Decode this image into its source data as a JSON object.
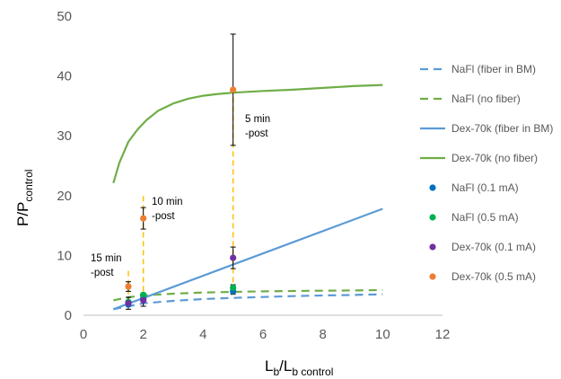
{
  "chart_data": {
    "type": "line",
    "xlim": [
      0,
      12
    ],
    "ylim": [
      0,
      50
    ],
    "x_ticks": [
      0,
      2,
      4,
      6,
      8,
      10,
      12
    ],
    "y_ticks": [
      0,
      10,
      20,
      30,
      40,
      50
    ],
    "xlabel": {
      "main": "L",
      "sub1": "b",
      "mid": "/L",
      "sub2": "b control"
    },
    "ylabel": {
      "main": "P/P",
      "sub": "control"
    },
    "grid": false,
    "legend_position": "right",
    "series": [
      {
        "name": "NaFl (fiber in BM)",
        "style": "dashed",
        "color": "#5b9bd5",
        "x": [
          1,
          1.5,
          2,
          3,
          4,
          5,
          6,
          7,
          8,
          9,
          10
        ],
        "y": [
          1.0,
          1.5,
          2.0,
          2.4,
          2.7,
          2.9,
          3.05,
          3.2,
          3.3,
          3.4,
          3.5
        ]
      },
      {
        "name": "NaFl (no fiber)",
        "style": "dashed",
        "color": "#70ad47",
        "x": [
          1,
          1.5,
          2,
          3,
          4,
          5,
          6,
          7,
          8,
          9,
          10
        ],
        "y": [
          2.5,
          3.0,
          3.3,
          3.6,
          3.8,
          3.9,
          4.0,
          4.05,
          4.1,
          4.15,
          4.2
        ]
      },
      {
        "name": "Dex-70k (fiber in BM)",
        "style": "solid",
        "color": "#5b9bd5",
        "x": [
          1,
          10
        ],
        "y": [
          1.0,
          17.8
        ]
      },
      {
        "name": "Dex-70k (no fiber)",
        "style": "solid",
        "color": "#70ad47",
        "x": [
          1,
          1.2,
          1.5,
          1.8,
          2.1,
          2.5,
          3,
          3.5,
          4,
          4.5,
          5,
          6,
          7,
          8,
          9,
          10
        ],
        "y": [
          22.1,
          25.5,
          29.0,
          31.0,
          32.6,
          34.2,
          35.4,
          36.2,
          36.7,
          37.0,
          37.2,
          37.5,
          37.7,
          38.0,
          38.3,
          38.5
        ]
      }
    ],
    "points": [
      {
        "name": "NaFl (0.1 mA)",
        "color": "#0070c0",
        "x": [
          1.5,
          2,
          5
        ],
        "y": [
          1.8,
          2.8,
          4.0
        ],
        "err": [
          0.3,
          0.3,
          0.5
        ]
      },
      {
        "name": "NaFl (0.5 mA)",
        "color": "#00b050",
        "x": [
          1.5,
          2,
          5
        ],
        "y": [
          2.2,
          3.4,
          4.6
        ],
        "err": [
          0.3,
          0.3,
          0.5
        ]
      },
      {
        "name": "Dex-70k (0.1 mA)",
        "color": "#7030a0",
        "x": [
          1.5,
          2,
          5
        ],
        "y": [
          2.0,
          2.5,
          9.6
        ],
        "err": [
          1.0,
          1.0,
          1.8
        ]
      },
      {
        "name": "Dex-70k (0.5 mA)",
        "color": "#ed7d31",
        "x": [
          1.5,
          2,
          5
        ],
        "y": [
          4.8,
          16.2,
          37.7
        ],
        "err": [
          0.8,
          1.8,
          9.3
        ]
      }
    ],
    "verticals": {
      "color": "#ffc000",
      "items": [
        {
          "x": 1.5,
          "y0": 2.0,
          "y1": 8.0
        },
        {
          "x": 2,
          "y0": 2.5,
          "y1": 20.0
        },
        {
          "x": 5,
          "y0": 4.0,
          "y1": 38.0
        }
      ]
    },
    "annotations": [
      {
        "lines": [
          "15 min",
          "-post"
        ]
      },
      {
        "lines": [
          "10 min",
          "-post"
        ]
      },
      {
        "lines": [
          "5 min",
          "-post"
        ]
      }
    ]
  }
}
